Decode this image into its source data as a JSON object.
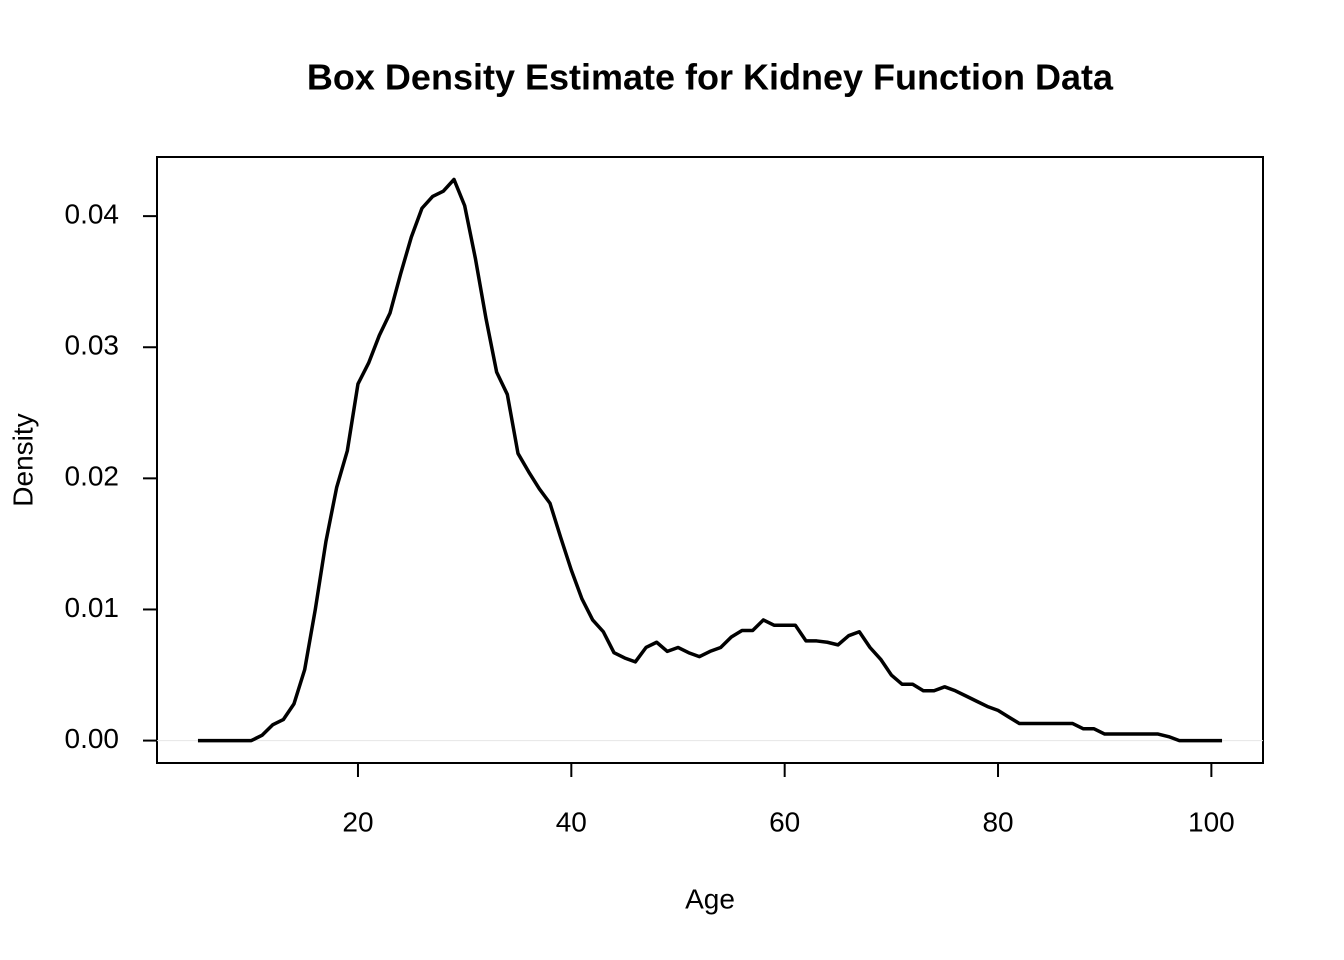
{
  "chart_data": {
    "type": "line",
    "title": "Box Density Estimate for Kidney Function Data",
    "x_label": "Age",
    "y_label": "Density",
    "x": [
      5,
      6,
      7,
      8,
      9,
      10,
      11,
      12,
      13,
      14,
      15,
      16,
      17,
      18,
      19,
      20,
      21,
      22,
      23,
      24,
      25,
      26,
      27,
      28,
      29,
      30,
      31,
      32,
      33,
      34,
      35,
      36,
      37,
      38,
      39,
      40,
      41,
      42,
      43,
      44,
      45,
      46,
      47,
      48,
      49,
      50,
      51,
      52,
      53,
      54,
      55,
      56,
      57,
      58,
      59,
      60,
      61,
      62,
      63,
      64,
      65,
      66,
      67,
      68,
      69,
      70,
      71,
      72,
      73,
      74,
      75,
      76,
      77,
      78,
      79,
      80,
      81,
      82,
      83,
      84,
      85,
      86,
      87,
      88,
      89,
      90,
      91,
      92,
      93,
      94,
      95,
      96,
      97,
      98,
      99,
      100,
      101
    ],
    "values": [
      0,
      0,
      0,
      0,
      0,
      0,
      0.0004,
      0.0012,
      0.0016,
      0.0028,
      0.0054,
      0.01,
      0.0152,
      0.0193,
      0.0221,
      0.0272,
      0.0288,
      0.0309,
      0.0326,
      0.0356,
      0.0384,
      0.0406,
      0.0415,
      0.0419,
      0.0428,
      0.0408,
      0.0368,
      0.0322,
      0.0281,
      0.0264,
      0.0219,
      0.0205,
      0.0192,
      0.0181,
      0.0155,
      0.013,
      0.0108,
      0.0092,
      0.0083,
      0.0067,
      0.0063,
      0.006,
      0.0071,
      0.0075,
      0.0068,
      0.0071,
      0.0067,
      0.0064,
      0.0068,
      0.0071,
      0.0079,
      0.0084,
      0.0084,
      0.0092,
      0.0088,
      0.0088,
      0.0088,
      0.0076,
      0.0076,
      0.0075,
      0.0073,
      0.008,
      0.0083,
      0.0071,
      0.0062,
      0.005,
      0.0043,
      0.0043,
      0.0038,
      0.0038,
      0.0041,
      0.0038,
      0.0034,
      0.003,
      0.0026,
      0.0023,
      0.0018,
      0.0013,
      0.0013,
      0.0013,
      0.0013,
      0.0013,
      0.0013,
      0.0009,
      0.0009,
      0.0005,
      0.0005,
      0.0005,
      0.0005,
      0.0005,
      0.0005,
      0.0003,
      0,
      0,
      0,
      0,
      0
    ],
    "color": "#000000",
    "xlim": [
      1.16,
      104.84
    ],
    "xticks": [
      20,
      40,
      60,
      80,
      100
    ],
    "ylim": [
      -0.00171,
      0.04451
    ],
    "yticks": [
      {
        "value": 0,
        "label": "0.00"
      },
      0.01,
      0.02,
      0.03,
      0.04
    ]
  }
}
